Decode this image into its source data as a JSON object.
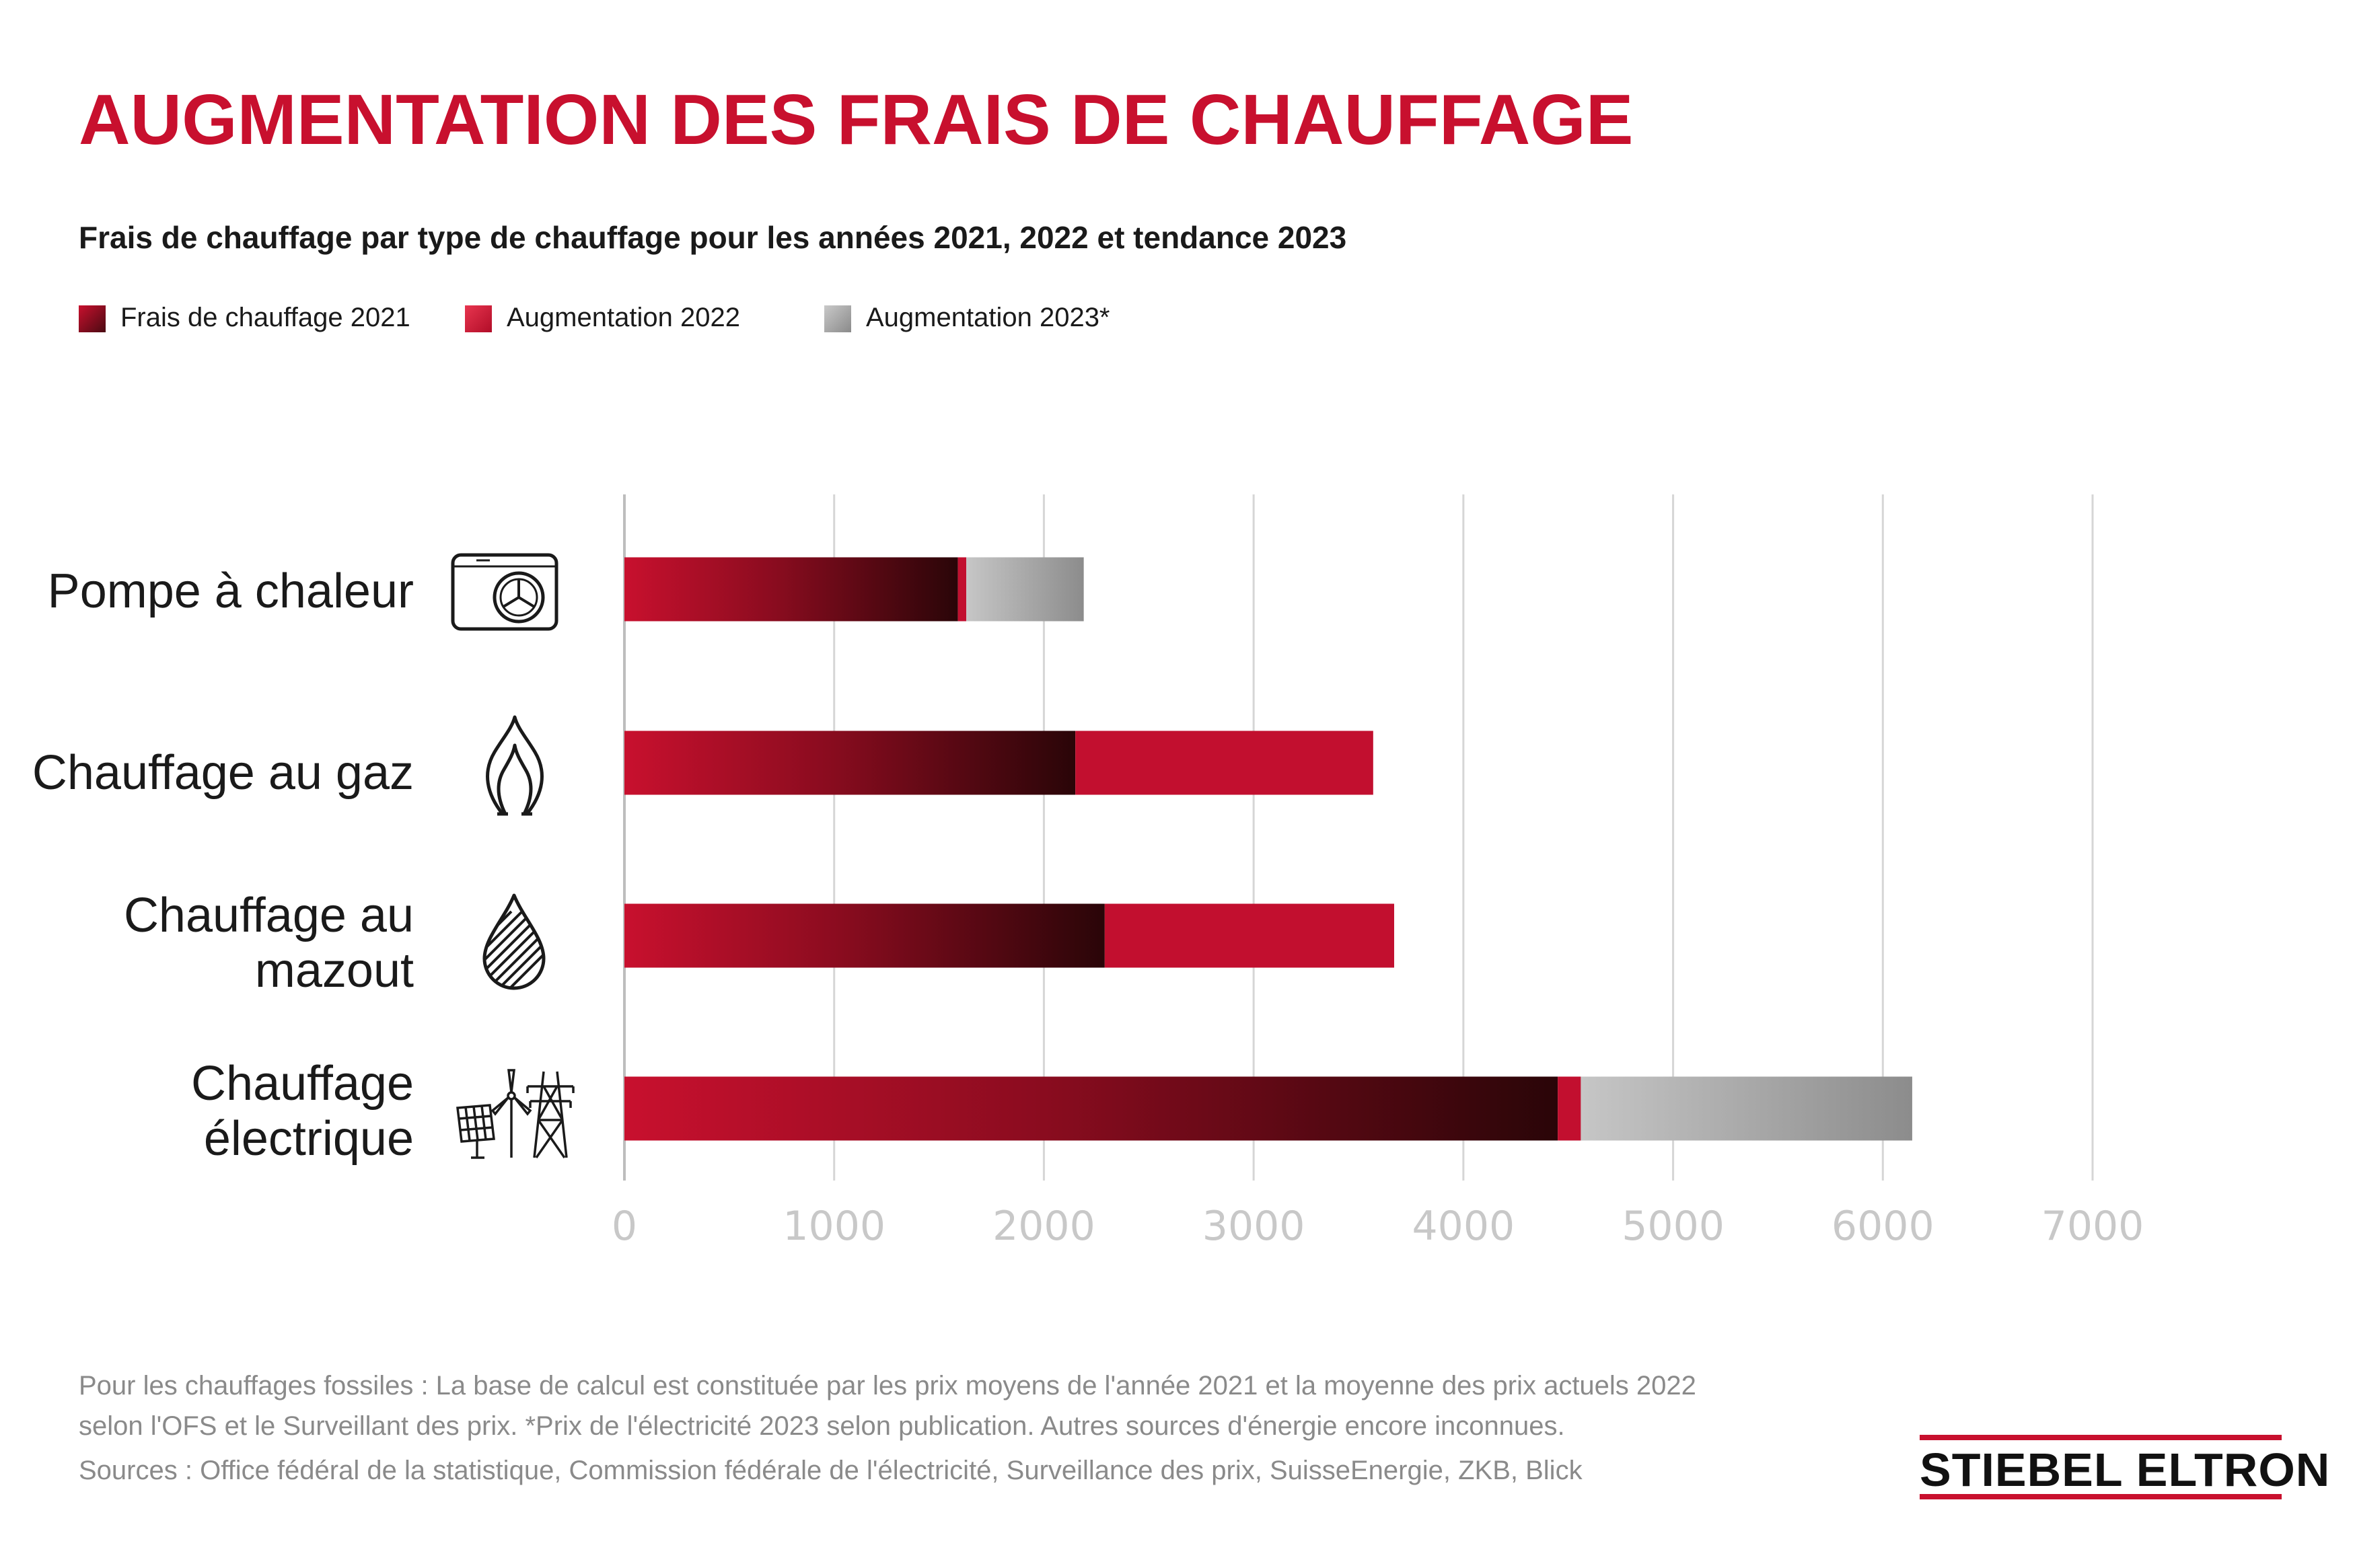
{
  "title": "AUGMENTATION DES FRAIS DE CHAUFFAGE",
  "subtitle": "Frais de chauffage par type de chauffage pour les années 2021, 2022 et tendance 2023",
  "legend": [
    {
      "label": "Frais de chauffage 2021",
      "color": "#9b0f22"
    },
    {
      "label": "Augmentation 2022",
      "color": "#c8102e"
    },
    {
      "label": "Augmentation 2023*",
      "color": "#9a9a9a"
    }
  ],
  "categories": [
    {
      "lines": [
        "Pompe à chaleur"
      ],
      "icon": "heat-pump-icon"
    },
    {
      "lines": [
        "Chauffage au gaz"
      ],
      "icon": "gas-flame-icon"
    },
    {
      "lines": [
        "Chauffage au",
        "mazout"
      ],
      "icon": "oil-drop-icon"
    },
    {
      "lines": [
        "Chauffage",
        "électrique"
      ],
      "icon": "electricity-pylon-icon"
    }
  ],
  "chart_data": {
    "type": "bar",
    "orientation": "horizontal",
    "stacked": true,
    "title": "AUGMENTATION DES FRAIS DE CHAUFFAGE",
    "subtitle": "Frais de chauffage par type de chauffage pour les années 2021, 2022 et tendance 2023",
    "categories": [
      "Pompe à chaleur",
      "Chauffage au gaz",
      "Chauffage au mazout",
      "Chauffage électrique"
    ],
    "series": [
      {
        "name": "Frais de chauffage 2021",
        "values": [
          1590,
          2150,
          2290,
          4450
        ]
      },
      {
        "name": "Augmentation 2022",
        "values": [
          40,
          1420,
          1380,
          110
        ]
      },
      {
        "name": "Augmentation 2023*",
        "values": [
          560,
          0,
          0,
          1580
        ]
      }
    ],
    "xlim": [
      0,
      7000
    ],
    "ticks": [
      "0",
      "1000",
      "2000",
      "3000",
      "4000",
      "5000",
      "6000",
      "7000"
    ],
    "grid": true,
    "legend_position": "top-left",
    "colors": {
      "base_start": "#c8102e",
      "base_end": "#2a0508",
      "increase_2022": "#c20f2f",
      "increase_2023_start": "#c4c4c4",
      "increase_2023_end": "#8c8c8c",
      "grid": "#d6d6d6",
      "tick_label": "#c8c8c8"
    }
  },
  "footnotes": [
    "Pour les chauffages fossiles : La base de calcul est constituée par les prix moyens de l'année 2021 et la moyenne des prix actuels 2022",
    "selon l'OFS et le Surveillant des prix. *Prix de l'électricité 2023 selon publication. Autres sources d'énergie encore inconnues.",
    "Sources : Office fédéral de la statistique, Commission fédérale de l'électricité, Surveillance des prix, SuisseEnergie, ZKB, Blick"
  ],
  "logo_text": "STIEBEL ELTRON"
}
